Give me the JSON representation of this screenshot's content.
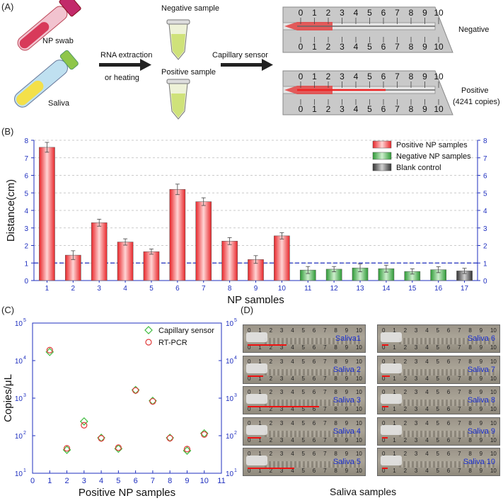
{
  "panel_a": {
    "label": "(A)",
    "np_swab": "NP swab",
    "saliva": "Saliva",
    "rna_extraction": "RNA extraction",
    "or_heating": "or heating",
    "negative_sample": "Negative sample",
    "positive_sample": "Positive sample",
    "capillary_sensor": "Capillary sensor",
    "negative": "Negative",
    "positive": "Positive",
    "positive_copies": "(4241 copies)",
    "ruler_ticks": [
      "0",
      "1",
      "2",
      "3",
      "4",
      "5",
      "6",
      "7",
      "8",
      "9",
      "10"
    ]
  },
  "panel_b": {
    "label": "(B)"
  },
  "panel_c": {
    "label": "(C)"
  },
  "panel_d": {
    "label": "(D)",
    "caption": "Saliva samples",
    "photos": [
      {
        "label": "Saliva1",
        "distance": 3.5
      },
      {
        "label": "Saliva 6",
        "distance": 0.6
      },
      {
        "label": "Saliva 2",
        "distance": 1.4
      },
      {
        "label": "Saliva 7",
        "distance": 0.7
      },
      {
        "label": "Saliva 3",
        "distance": 6.4
      },
      {
        "label": "Saliva 8",
        "distance": 0.6
      },
      {
        "label": "Saliva 4",
        "distance": 1.2
      },
      {
        "label": "Saliva 9",
        "distance": 0.5
      },
      {
        "label": "Saliva 5",
        "distance": 4.2
      },
      {
        "label": "Saliva 10",
        "distance": 0.5
      }
    ]
  },
  "chart_data": [
    {
      "type": "bar",
      "panel": "B",
      "xlabel": "NP samples",
      "ylabel": "Distance(cm)",
      "ylim": [
        0,
        8
      ],
      "yticks": [
        0,
        1,
        2,
        3,
        4,
        5,
        6,
        7,
        8
      ],
      "categories": [
        "1",
        "2",
        "3",
        "4",
        "5",
        "6",
        "7",
        "8",
        "9",
        "10",
        "11",
        "12",
        "13",
        "14",
        "15",
        "16",
        "17"
      ],
      "values": [
        7.6,
        1.45,
        3.3,
        2.2,
        1.65,
        5.2,
        4.5,
        2.25,
        1.2,
        2.55,
        0.6,
        0.65,
        0.72,
        0.68,
        0.52,
        0.62,
        0.55
      ],
      "errors": [
        0.28,
        0.25,
        0.2,
        0.18,
        0.15,
        0.3,
        0.22,
        0.2,
        0.22,
        0.18,
        0.2,
        0.15,
        0.22,
        0.2,
        0.15,
        0.17,
        0.15
      ],
      "groups": [
        "pos",
        "pos",
        "pos",
        "pos",
        "pos",
        "pos",
        "pos",
        "pos",
        "pos",
        "pos",
        "neg",
        "neg",
        "neg",
        "neg",
        "neg",
        "neg",
        "blank"
      ],
      "threshold": 1,
      "legend": [
        {
          "key": "pos",
          "label": "Positive NP samples"
        },
        {
          "key": "neg",
          "label": "Negative NP samples"
        },
        {
          "key": "blank",
          "label": "Blank control"
        }
      ],
      "legend_position": "top-right",
      "colors": {
        "pos": "#e8262a",
        "neg": "#2e9a36",
        "blank": "#333333",
        "axis": "#1f2fbf",
        "threshold": "#1f2fbf"
      }
    },
    {
      "type": "scatter",
      "panel": "C",
      "xlabel": "Positive NP samples",
      "ylabel": "Copies/μL",
      "xlim": [
        0,
        11
      ],
      "xticks": [
        "0",
        "1",
        "2",
        "3",
        "4",
        "5",
        "6",
        "7",
        "8",
        "9",
        "10",
        "11"
      ],
      "ylim_log": [
        1,
        5
      ],
      "yticks": [
        {
          "base": "10",
          "exp": "1"
        },
        {
          "base": "10",
          "exp": "2"
        },
        {
          "base": "10",
          "exp": "3"
        },
        {
          "base": "10",
          "exp": "4"
        },
        {
          "base": "10",
          "exp": "5"
        }
      ],
      "series": [
        {
          "name": "Capillary sensor",
          "marker": "diamond",
          "color": "#3dbb3d",
          "x": [
            1,
            2,
            3,
            4,
            5,
            6,
            7,
            8,
            9,
            10
          ],
          "y": [
            17000,
            42,
            240,
            88,
            45,
            1650,
            850,
            88,
            40,
            115
          ]
        },
        {
          "name": "RT-PCR",
          "marker": "circle",
          "color": "#e03a3a",
          "x": [
            1,
            2,
            3,
            4,
            5,
            6,
            7,
            8,
            9,
            10
          ],
          "y": [
            19000,
            46,
            190,
            85,
            48,
            1600,
            820,
            86,
            44,
            108
          ]
        }
      ],
      "legend_position": "top-right"
    }
  ]
}
